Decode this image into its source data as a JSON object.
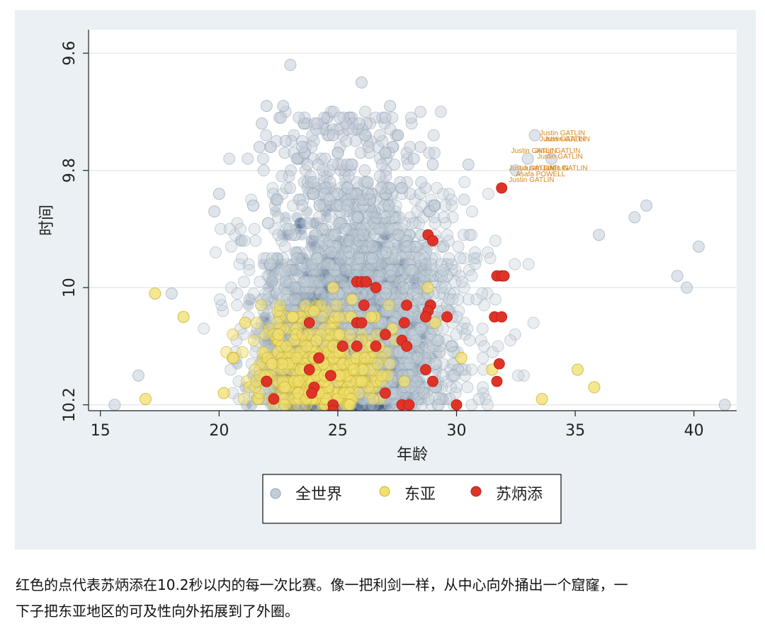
{
  "chart_data": {
    "type": "scatter",
    "xlabel": "年龄",
    "ylabel": "时间",
    "xlim": [
      14.5,
      41.8
    ],
    "ylim": [
      10.21,
      9.56
    ],
    "y_reversed": true,
    "xticks": [
      15,
      20,
      25,
      30,
      35,
      40
    ],
    "yticks": [
      9.6,
      9.8,
      10,
      10.2
    ],
    "ytick_labels": [
      "9.6",
      "9.8",
      "10",
      "10.2"
    ],
    "grid": "horizontal",
    "legend_position": "bottom",
    "colors": {
      "world": "#c3cdd8",
      "world_edge": "#8fa0b2",
      "world_dense": "#2e4e78",
      "east_asia": "#f1df6e",
      "east_asia_edge": "#c7b232",
      "su": "#e03328",
      "annotation": "#d9861c"
    },
    "legend": [
      {
        "name": "全世界",
        "marker": "circle-light-blue"
      },
      {
        "name": "东亚",
        "marker": "circle-yellow"
      },
      {
        "name": "苏炳添",
        "marker": "circle-red"
      }
    ],
    "series": [
      {
        "name": "全世界",
        "description": "several thousand times ≤10.2s, dense mass between ages 19 and 32",
        "points": [
          [
            23.0,
            9.62
          ],
          [
            26.0,
            9.65
          ],
          [
            22.0,
            9.69
          ],
          [
            22.7,
            9.69
          ],
          [
            27.2,
            9.69
          ],
          [
            27.0,
            9.71
          ],
          [
            21.8,
            9.72
          ],
          [
            25.9,
            9.72
          ],
          [
            24.8,
            9.74
          ],
          [
            22.8,
            9.75
          ],
          [
            33.3,
            9.74
          ],
          [
            21.7,
            9.76
          ],
          [
            23.5,
            9.76
          ],
          [
            25.0,
            9.77
          ],
          [
            27.0,
            9.77
          ],
          [
            28.2,
            9.78
          ],
          [
            29.0,
            9.79
          ],
          [
            30.5,
            9.79
          ],
          [
            33.0,
            9.78
          ],
          [
            34.0,
            9.78
          ],
          [
            32.5,
            9.8
          ],
          [
            20.0,
            9.84
          ],
          [
            19.8,
            9.87
          ],
          [
            38.0,
            9.86
          ],
          [
            40.2,
            9.93
          ],
          [
            39.3,
            9.98
          ],
          [
            39.7,
            10.0
          ],
          [
            18.0,
            10.01
          ],
          [
            16.6,
            10.15
          ],
          [
            15.6,
            10.2
          ],
          [
            41.3,
            10.2
          ],
          [
            37.5,
            9.88
          ],
          [
            36.0,
            9.91
          ]
        ]
      },
      {
        "name": "东亚",
        "description": "East Asian sprinters, mostly 10.00–10.20, ages 17–35",
        "points": [
          [
            17.3,
            10.01
          ],
          [
            16.9,
            10.19
          ],
          [
            18.5,
            10.05
          ],
          [
            21.1,
            10.06
          ],
          [
            22.5,
            10.08
          ],
          [
            23.1,
            10.05
          ],
          [
            24.0,
            10.04
          ],
          [
            24.8,
            10.0
          ],
          [
            25.6,
            10.02
          ],
          [
            26.4,
            10.05
          ],
          [
            27.3,
            10.07
          ],
          [
            28.8,
            10.0
          ],
          [
            29.1,
            10.06
          ],
          [
            30.2,
            10.12
          ],
          [
            31.5,
            10.14
          ],
          [
            33.6,
            10.19
          ],
          [
            35.1,
            10.14
          ],
          [
            35.8,
            10.17
          ],
          [
            20.6,
            10.12
          ],
          [
            22.0,
            10.16
          ],
          [
            23.8,
            10.18
          ],
          [
            25.5,
            10.2
          ],
          [
            27.8,
            10.16
          ],
          [
            20.2,
            10.18
          ]
        ]
      },
      {
        "name": "苏炳添",
        "points": [
          [
            31.9,
            9.83
          ],
          [
            28.8,
            9.91
          ],
          [
            29.0,
            9.92
          ],
          [
            31.7,
            9.98
          ],
          [
            31.9,
            9.98
          ],
          [
            32.0,
            9.98
          ],
          [
            25.8,
            9.99
          ],
          [
            26.0,
            9.99
          ],
          [
            26.2,
            9.99
          ],
          [
            26.6,
            10.0
          ],
          [
            26.1,
            10.03
          ],
          [
            27.9,
            10.03
          ],
          [
            28.9,
            10.03
          ],
          [
            28.8,
            10.04
          ],
          [
            28.7,
            10.05
          ],
          [
            29.6,
            10.05
          ],
          [
            31.6,
            10.05
          ],
          [
            31.9,
            10.05
          ],
          [
            23.8,
            10.06
          ],
          [
            25.8,
            10.06
          ],
          [
            26.0,
            10.06
          ],
          [
            27.8,
            10.06
          ],
          [
            27.0,
            10.08
          ],
          [
            27.7,
            10.09
          ],
          [
            25.2,
            10.1
          ],
          [
            25.8,
            10.1
          ],
          [
            26.6,
            10.1
          ],
          [
            27.9,
            10.1
          ],
          [
            24.2,
            10.12
          ],
          [
            31.8,
            10.13
          ],
          [
            23.8,
            10.14
          ],
          [
            24.7,
            10.15
          ],
          [
            28.7,
            10.14
          ],
          [
            22.0,
            10.16
          ],
          [
            24.0,
            10.17
          ],
          [
            23.9,
            10.18
          ],
          [
            29.0,
            10.16
          ],
          [
            31.7,
            10.16
          ],
          [
            27.0,
            10.18
          ],
          [
            27.7,
            10.2
          ],
          [
            28.0,
            10.2
          ],
          [
            22.3,
            10.19
          ],
          [
            24.8,
            10.2
          ],
          [
            30.0,
            10.2
          ],
          [
            24.8,
            10.21
          ]
        ]
      }
    ],
    "annotations": [
      {
        "text": "Justin GATLIN",
        "x": 33.5,
        "y": 9.74
      },
      {
        "text": "Justin GATLIN",
        "x": 33.5,
        "y": 9.75
      },
      {
        "text": "Justin GATLIN",
        "x": 33.7,
        "y": 9.75
      },
      {
        "text": "Justin GATLIN",
        "x": 32.3,
        "y": 9.77
      },
      {
        "text": "Justin GATLIN",
        "x": 33.3,
        "y": 9.77
      },
      {
        "text": "Justin GATLIN",
        "x": 33.4,
        "y": 9.78
      },
      {
        "text": "Justin GATLIN",
        "x": 32.2,
        "y": 9.8
      },
      {
        "text": "Justin GATLIN",
        "x": 32.8,
        "y": 9.8
      },
      {
        "text": "Justin GATLIN",
        "x": 33.6,
        "y": 9.8
      },
      {
        "text": "Asafa POWELL",
        "x": 32.5,
        "y": 9.81
      },
      {
        "text": "Justin GATLIN",
        "x": 32.2,
        "y": 9.82
      }
    ]
  },
  "caption": {
    "line1": "红色的点代表苏炳添在10.2秒以内的每一次比赛。像一把利剑一样，从中心向外捅出一个窟窿，一",
    "line2": "下子把东亚地区的可及性向外拓展到了外圈。"
  }
}
